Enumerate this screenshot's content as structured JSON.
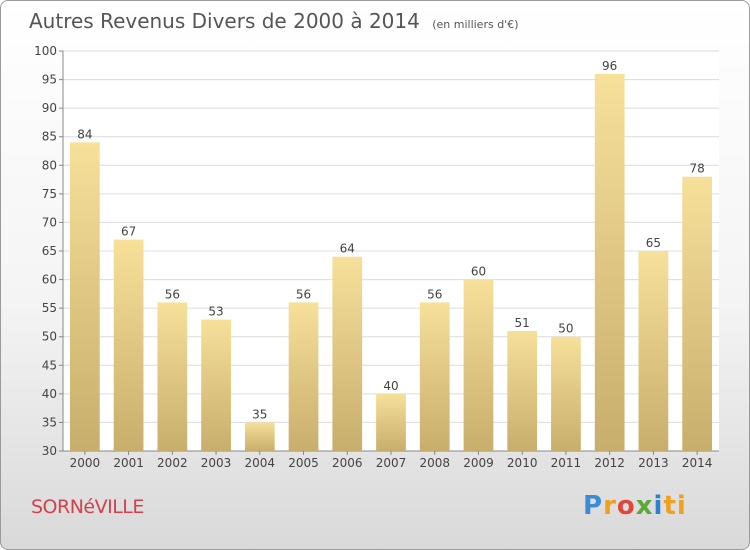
{
  "chart_data": {
    "type": "bar",
    "title": "Autres Revenus Divers de 2000 à 2014",
    "unit_label": "(en milliers d'€)",
    "categories": [
      "2000",
      "2001",
      "2002",
      "2003",
      "2004",
      "2005",
      "2006",
      "2007",
      "2008",
      "2009",
      "2010",
      "2011",
      "2012",
      "2013",
      "2014"
    ],
    "values": [
      84,
      67,
      56,
      53,
      35,
      56,
      64,
      40,
      56,
      60,
      51,
      50,
      96,
      65,
      78
    ],
    "ylim": [
      30,
      100
    ],
    "yticks": [
      30,
      35,
      40,
      45,
      50,
      55,
      60,
      65,
      70,
      75,
      80,
      85,
      90,
      95,
      100
    ],
    "grid": true,
    "bar_color_top": "#f6e09a",
    "bar_color_bottom": "#c8ae6c"
  },
  "footer": {
    "commune": "SORNéVILLE",
    "logo_letters": [
      "P",
      "r",
      "o",
      "x",
      "i",
      "ti"
    ]
  }
}
